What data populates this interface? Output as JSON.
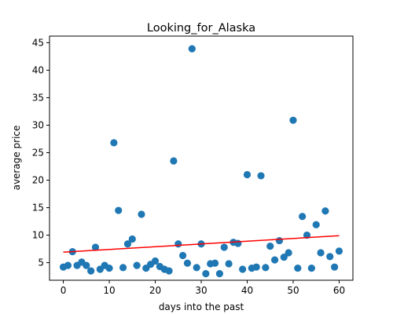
{
  "chart_data": {
    "type": "scatter",
    "title": "Looking_for_Alaska",
    "xlabel": "days into the past",
    "ylabel": "average price",
    "xlim": [
      -3,
      63
    ],
    "ylim": [
      1.8,
      46.2
    ],
    "xticks": [
      0,
      10,
      20,
      30,
      40,
      50,
      60
    ],
    "yticks": [
      5,
      10,
      15,
      20,
      25,
      30,
      35,
      40,
      45
    ],
    "grid": false,
    "colors": {
      "points": "#1f77b4",
      "trend": "#ff0000"
    },
    "series": [
      {
        "points": [
          [
            0,
            4.2
          ],
          [
            1,
            4.5
          ],
          [
            2,
            7.0
          ],
          [
            3,
            4.5
          ],
          [
            4,
            5.1
          ],
          [
            5,
            4.5
          ],
          [
            6,
            3.5
          ],
          [
            7,
            7.8
          ],
          [
            8,
            3.8
          ],
          [
            9,
            4.5
          ],
          [
            10,
            4.0
          ],
          [
            11,
            26.8
          ],
          [
            12,
            14.5
          ],
          [
            13,
            4.1
          ],
          [
            14,
            8.4
          ],
          [
            15,
            9.3
          ],
          [
            16,
            4.5
          ],
          [
            17,
            13.8
          ],
          [
            18,
            4.0
          ],
          [
            19,
            4.7
          ],
          [
            20,
            5.3
          ],
          [
            21,
            4.3
          ],
          [
            22,
            3.8
          ],
          [
            23,
            3.5
          ],
          [
            24,
            23.5
          ],
          [
            25,
            8.4
          ],
          [
            26,
            6.3
          ],
          [
            27,
            4.9
          ],
          [
            28,
            43.9
          ],
          [
            29,
            4.1
          ],
          [
            30,
            8.4
          ],
          [
            31,
            3.0
          ],
          [
            32,
            4.8
          ],
          [
            33,
            4.9
          ],
          [
            34,
            3.0
          ],
          [
            35,
            7.8
          ],
          [
            36,
            4.8
          ],
          [
            37,
            8.7
          ],
          [
            38,
            8.5
          ],
          [
            39,
            3.8
          ],
          [
            40,
            21.0
          ],
          [
            41,
            4.0
          ],
          [
            42,
            4.2
          ],
          [
            43,
            20.8
          ],
          [
            44,
            4.1
          ],
          [
            45,
            8.0
          ],
          [
            46,
            5.5
          ],
          [
            47,
            9.0
          ],
          [
            48,
            6.0
          ],
          [
            49,
            6.8
          ],
          [
            50,
            30.9
          ],
          [
            51,
            4.0
          ],
          [
            52,
            13.4
          ],
          [
            53,
            10.0
          ],
          [
            54,
            4.0
          ],
          [
            55,
            11.9
          ],
          [
            56,
            6.8
          ],
          [
            57,
            14.4
          ],
          [
            58,
            6.1
          ],
          [
            59,
            4.2
          ],
          [
            60,
            7.1
          ]
        ]
      }
    ],
    "trendline": {
      "x": [
        0,
        60
      ],
      "y": [
        6.9,
        9.9
      ]
    }
  }
}
